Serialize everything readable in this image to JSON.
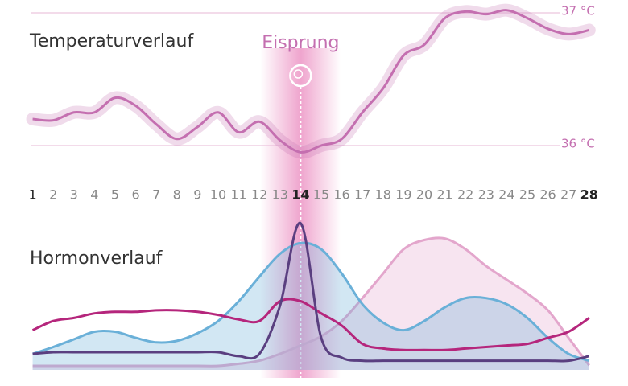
{
  "chart_data": [
    {
      "type": "line",
      "title": "Temperaturverlauf",
      "annotation": "Eisprung",
      "annotation_x": 14,
      "x": [
        1,
        2,
        3,
        4,
        5,
        6,
        7,
        8,
        9,
        10,
        11,
        12,
        13,
        14,
        15,
        16,
        17,
        18,
        19,
        20,
        21,
        22,
        23,
        24,
        25,
        26,
        27,
        28
      ],
      "xlim": [
        0.9,
        28.4
      ],
      "series": [
        {
          "color": "#c46fb0",
          "values": [
            36.2,
            36.19,
            36.25,
            36.25,
            36.36,
            36.3,
            36.16,
            36.05,
            36.14,
            36.25,
            36.1,
            36.18,
            36.04,
            35.95,
            36.0,
            36.05,
            36.25,
            36.43,
            36.68,
            36.76,
            36.96,
            37.01,
            36.99,
            37.02,
            36.96,
            36.88,
            36.84,
            36.87
          ]
        }
      ],
      "ylim": [
        35.9,
        37.0
      ],
      "yticks": [
        {
          "value": 36,
          "label": "36 °C"
        },
        {
          "value": 37,
          "label": "37 °C"
        }
      ],
      "grid": true
    },
    {
      "type": "area",
      "title": "Hormonverlauf",
      "ylim": [
        0,
        100
      ],
      "series": [
        {
          "color": "#e3a6cc",
          "fill": true,
          "values": [
            2.6,
            2.6,
            2.6,
            2.6,
            2.6,
            2.6,
            2.6,
            2.6,
            2.6,
            2.6,
            4,
            6,
            10.5,
            16,
            22,
            32,
            47,
            63,
            79,
            85,
            86,
            79,
            68,
            59,
            50,
            39,
            21,
            3
          ]
        },
        {
          "color": "#6ab0d8",
          "fill": true,
          "values": [
            10.5,
            15,
            20,
            25,
            25,
            21,
            18,
            19,
            24,
            32,
            45,
            61,
            76,
            83,
            79,
            63,
            43,
            31,
            26,
            32,
            41,
            47,
            47,
            43,
            34,
            21,
            10.5,
            6
          ]
        },
        {
          "color": "#b5267c",
          "fill": false,
          "values": [
            26,
            32,
            34,
            37,
            38,
            38,
            39,
            39,
            38,
            36,
            33,
            32,
            45,
            45,
            37,
            29,
            17,
            14,
            13,
            13,
            13,
            14,
            15,
            16,
            17,
            21,
            25,
            34
          ]
        },
        {
          "color": "#5a3f80",
          "fill": false,
          "values": [
            10.5,
            11.6,
            11.6,
            11.6,
            11.6,
            11.6,
            11.6,
            11.6,
            11.6,
            11.6,
            9,
            10.5,
            42,
            96,
            21,
            8,
            6,
            6,
            6,
            6,
            6,
            6,
            6,
            6,
            6,
            6,
            6,
            9
          ]
        }
      ]
    }
  ]
}
